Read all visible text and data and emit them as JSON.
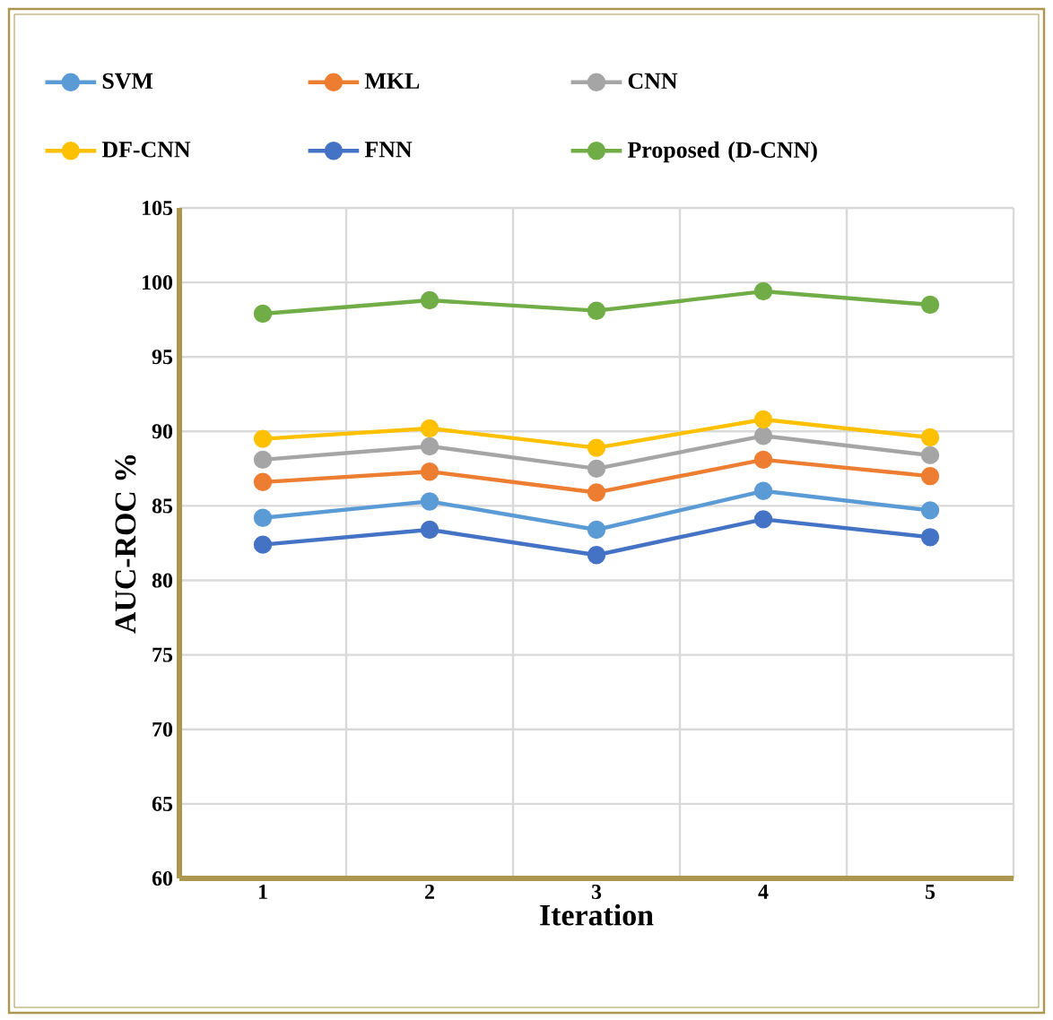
{
  "chart_data": {
    "type": "line",
    "xlabel": "Iteration",
    "ylabel": "AUC-ROC %",
    "categories": [
      "1",
      "2",
      "3",
      "4",
      "5"
    ],
    "series": [
      {
        "name": "SVM",
        "color": "#5b9bd5",
        "values": [
          84.2,
          85.3,
          83.4,
          86.0,
          84.7
        ]
      },
      {
        "name": "MKL",
        "color": "#ed7d31",
        "values": [
          86.6,
          87.3,
          85.9,
          88.1,
          87.0
        ]
      },
      {
        "name": "CNN",
        "color": "#a5a5a5",
        "values": [
          88.1,
          89.0,
          87.5,
          89.7,
          88.4
        ]
      },
      {
        "name": "DF-CNN",
        "color": "#ffc000",
        "values": [
          89.5,
          90.2,
          88.9,
          90.8,
          89.6
        ]
      },
      {
        "name": "FNN",
        "color": "#4472c4",
        "values": [
          82.4,
          83.4,
          81.7,
          84.1,
          82.9
        ]
      },
      {
        "name": "Proposed (D-CNN)",
        "color": "#70ad47",
        "values": [
          97.9,
          98.8,
          98.1,
          99.4,
          98.5
        ]
      }
    ],
    "ylim": [
      60,
      105
    ],
    "yticks": [
      60,
      65,
      70,
      75,
      80,
      85,
      90,
      95,
      100,
      105
    ],
    "grid": true,
    "legend": "top",
    "marker": "circle",
    "line_style": "solid"
  }
}
